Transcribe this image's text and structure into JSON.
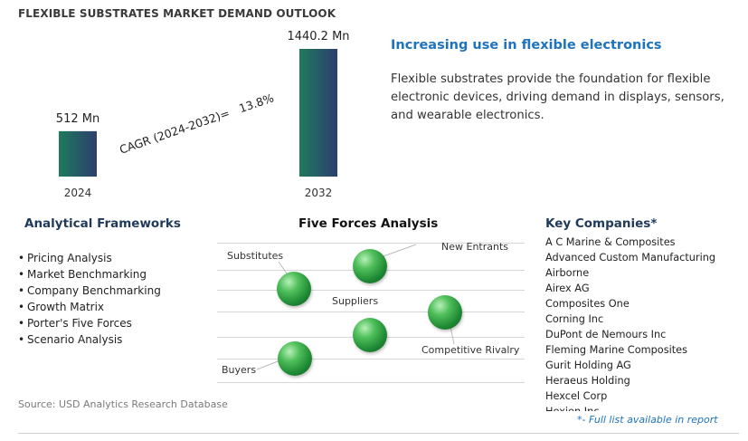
{
  "page": {
    "title": "FLEXIBLE SUBSTRATES MARKET DEMAND OUTLOOK",
    "source": "Source: USD Analytics Research Database"
  },
  "chart_data": {
    "type": "bar",
    "categories": [
      "2024",
      "2032"
    ],
    "values": [
      512,
      1440.2
    ],
    "value_labels": [
      "512 Mn",
      "1440.2 Mn"
    ],
    "annotation": "CAGR (2024-2032)=   13.8%",
    "bar_colors": [
      "#1f6f5c",
      "#2a3f6e"
    ],
    "ylim": [
      0,
      1440.2
    ]
  },
  "insight": {
    "headline": "Increasing use in flexible electronics",
    "description": "Flexible substrates provide the foundation for flexible electronic devices, driving demand in displays, sensors, and wearable electronics."
  },
  "frameworks": {
    "heading": "Analytical Frameworks",
    "items": [
      "Pricing Analysis",
      "Market Benchmarking",
      "Company Benchmarking",
      "Growth Matrix",
      "Porter's Five Forces",
      "Scenario Analysis"
    ]
  },
  "five_forces": {
    "heading": "Five Forces Analysis",
    "labels": {
      "substitutes": "Substitutes",
      "new_entrants": "New Entrants",
      "suppliers": "Suppliers",
      "competitive_rivalry": "Competitive Rivalry",
      "buyers": "Buyers"
    }
  },
  "companies": {
    "heading": "Key Companies*",
    "items": [
      "A C Marine & Composites",
      "Advanced Custom Manufacturing",
      "Airborne",
      "Airex AG",
      "Composites One",
      "Corning Inc",
      "DuPont de Nemours Inc",
      "Fleming Marine Composites",
      "Gurit Holding AG",
      "Heraeus Holding",
      "Hexcel Corp",
      "Hexion Inc"
    ],
    "footnote": "*- Full list available in report"
  },
  "colors": {
    "accent_blue": "#1e73be",
    "heading_navy": "#1f3a5a",
    "sphere_green": "#2e9e44"
  }
}
